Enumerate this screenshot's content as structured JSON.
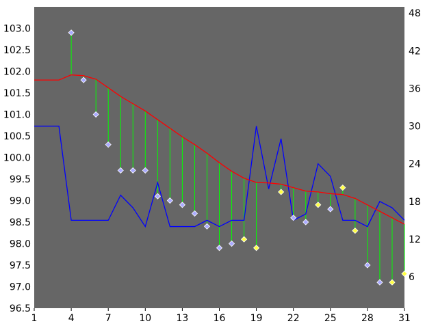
{
  "chart_data": {
    "type": "line",
    "title": "",
    "xlabel": "",
    "ylabel": "",
    "x": [
      1,
      2,
      3,
      4,
      5,
      6,
      7,
      8,
      9,
      10,
      11,
      12,
      13,
      14,
      15,
      16,
      17,
      18,
      19,
      20,
      21,
      22,
      23,
      24,
      25,
      26,
      27,
      28,
      29,
      30,
      31
    ],
    "xlim": [
      1,
      31
    ],
    "x_ticks": [
      1,
      4,
      7,
      10,
      13,
      16,
      19,
      22,
      25,
      28,
      31
    ],
    "x_tick_labels": [
      "1",
      "4",
      "7",
      "10",
      "13",
      "16",
      "19",
      "22",
      "25",
      "28",
      "31"
    ],
    "ylim": [
      96.5,
      103.5
    ],
    "y_ticks": [
      96.5,
      97.0,
      97.5,
      98.0,
      98.5,
      99.0,
      99.5,
      100.0,
      100.5,
      101.0,
      101.5,
      102.0,
      102.5,
      103.0
    ],
    "y_tick_labels": [
      "96.5",
      "97.0",
      "97.5",
      "98.0",
      "98.5",
      "99.0",
      "99.5",
      "100.0",
      "100.5",
      "101.0",
      "101.5",
      "102.0",
      "102.5",
      "103.0"
    ],
    "y2lim": [
      1,
      49
    ],
    "y2_ticks": [
      6,
      12,
      18,
      24,
      30,
      36,
      42,
      48
    ],
    "y2_tick_labels": [
      "6",
      "12",
      "18",
      "24",
      "30",
      "36",
      "42",
      "48"
    ],
    "grid": false,
    "legend": "none",
    "series": [
      {
        "role": "points",
        "axis": "left",
        "x": [
          4,
          5,
          6,
          7,
          8,
          9,
          10,
          11,
          12,
          13,
          14,
          15,
          16,
          17,
          18,
          19,
          21,
          22,
          23,
          24,
          25,
          26,
          27,
          28,
          29,
          30,
          31
        ],
        "y": [
          102.9,
          101.8,
          101.0,
          100.3,
          99.7,
          99.7,
          99.7,
          99.1,
          99.0,
          98.9,
          98.7,
          98.4,
          97.9,
          98.0,
          98.1,
          97.9,
          99.2,
          98.6,
          98.5,
          98.9,
          98.8,
          99.3,
          98.3,
          97.5,
          97.1,
          97.1,
          97.3
        ],
        "highlighted": [
          false,
          false,
          false,
          false,
          false,
          false,
          false,
          false,
          false,
          false,
          false,
          false,
          false,
          false,
          true,
          true,
          true,
          false,
          false,
          true,
          false,
          true,
          true,
          false,
          false,
          true,
          true
        ]
      },
      {
        "role": "moving-average",
        "axis": "left",
        "x": [
          1,
          2,
          3,
          4,
          5,
          6,
          7,
          8,
          9,
          10,
          11,
          12,
          13,
          14,
          15,
          16,
          17,
          18,
          19,
          20,
          21,
          22,
          23,
          24,
          25,
          26,
          27,
          28,
          29,
          30,
          31
        ],
        "y": [
          101.8,
          101.8,
          101.8,
          101.92,
          101.9,
          101.82,
          101.62,
          101.42,
          101.25,
          101.08,
          100.88,
          100.68,
          100.48,
          100.3,
          100.1,
          99.88,
          99.68,
          99.52,
          99.42,
          99.41,
          99.38,
          99.3,
          99.22,
          99.2,
          99.16,
          99.14,
          99.05,
          98.9,
          98.75,
          98.6,
          98.45
        ]
      },
      {
        "role": "count",
        "axis": "right",
        "x": [
          1,
          2,
          3,
          4,
          5,
          6,
          7,
          8,
          9,
          10,
          11,
          12,
          13,
          14,
          15,
          16,
          17,
          18,
          19,
          20,
          21,
          22,
          23,
          24,
          25,
          26,
          27,
          28,
          29,
          30,
          31
        ],
        "y": [
          30,
          30,
          30,
          15,
          15,
          15,
          15,
          19,
          17,
          14,
          21,
          14,
          14,
          14,
          15,
          14,
          15,
          15,
          30,
          20,
          28,
          15,
          16,
          24,
          22,
          15,
          15,
          14,
          18,
          17,
          15
        ]
      }
    ],
    "colors": {
      "plot_background": "#666666",
      "points": "#aaaaff",
      "points_highlight": "#ffff44",
      "moving_average": "#ff0000",
      "count": "#0000ff",
      "connectors": "#00ff00",
      "axis_text": "#000000"
    }
  }
}
